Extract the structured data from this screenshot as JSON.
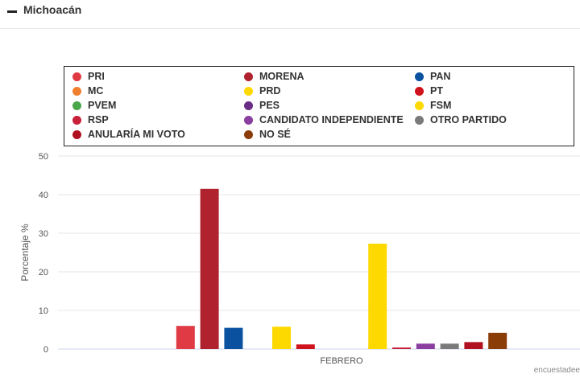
{
  "header": {
    "title": "Michoacán",
    "collapse_icon": "minus-icon"
  },
  "credit": "encuestadee",
  "chart_data": {
    "type": "bar",
    "categories": [
      "FEBRERO"
    ],
    "ylabel": "Porcentaje %",
    "xlabel": "",
    "ylim": [
      0,
      50
    ],
    "yticks": [
      0,
      10,
      20,
      30,
      40,
      50
    ],
    "grid": true,
    "legend_position": "top",
    "series": [
      {
        "name": "PRI",
        "color": "#e03a45",
        "values": [
          6.0
        ]
      },
      {
        "name": "MORENA",
        "color": "#b0232e",
        "values": [
          41.5
        ]
      },
      {
        "name": "PAN",
        "color": "#0a52a0",
        "values": [
          5.5
        ]
      },
      {
        "name": "MC",
        "color": "#f08030",
        "values": [
          0
        ]
      },
      {
        "name": "PRD",
        "color": "#fed900",
        "values": [
          5.8
        ]
      },
      {
        "name": "PT",
        "color": "#d0121c",
        "values": [
          1.2
        ]
      },
      {
        "name": "PVEM",
        "color": "#4ba84a",
        "values": [
          0
        ]
      },
      {
        "name": "PES",
        "color": "#6a2c84",
        "values": [
          0
        ]
      },
      {
        "name": "FSM",
        "color": "#fed900",
        "values": [
          27.3
        ]
      },
      {
        "name": "RSP",
        "color": "#c8203a",
        "values": [
          0.4
        ]
      },
      {
        "name": "CANDIDATO INDEPENDIENTE",
        "color": "#8a3ea0",
        "values": [
          1.4
        ]
      },
      {
        "name": "OTRO PARTIDO",
        "color": "#7a7a7a",
        "values": [
          1.4
        ]
      },
      {
        "name": "ANULARÍA MI VOTO",
        "color": "#b01020",
        "values": [
          1.8
        ]
      },
      {
        "name": "NO SÉ",
        "color": "#8b3d08",
        "values": [
          4.2
        ]
      }
    ]
  }
}
